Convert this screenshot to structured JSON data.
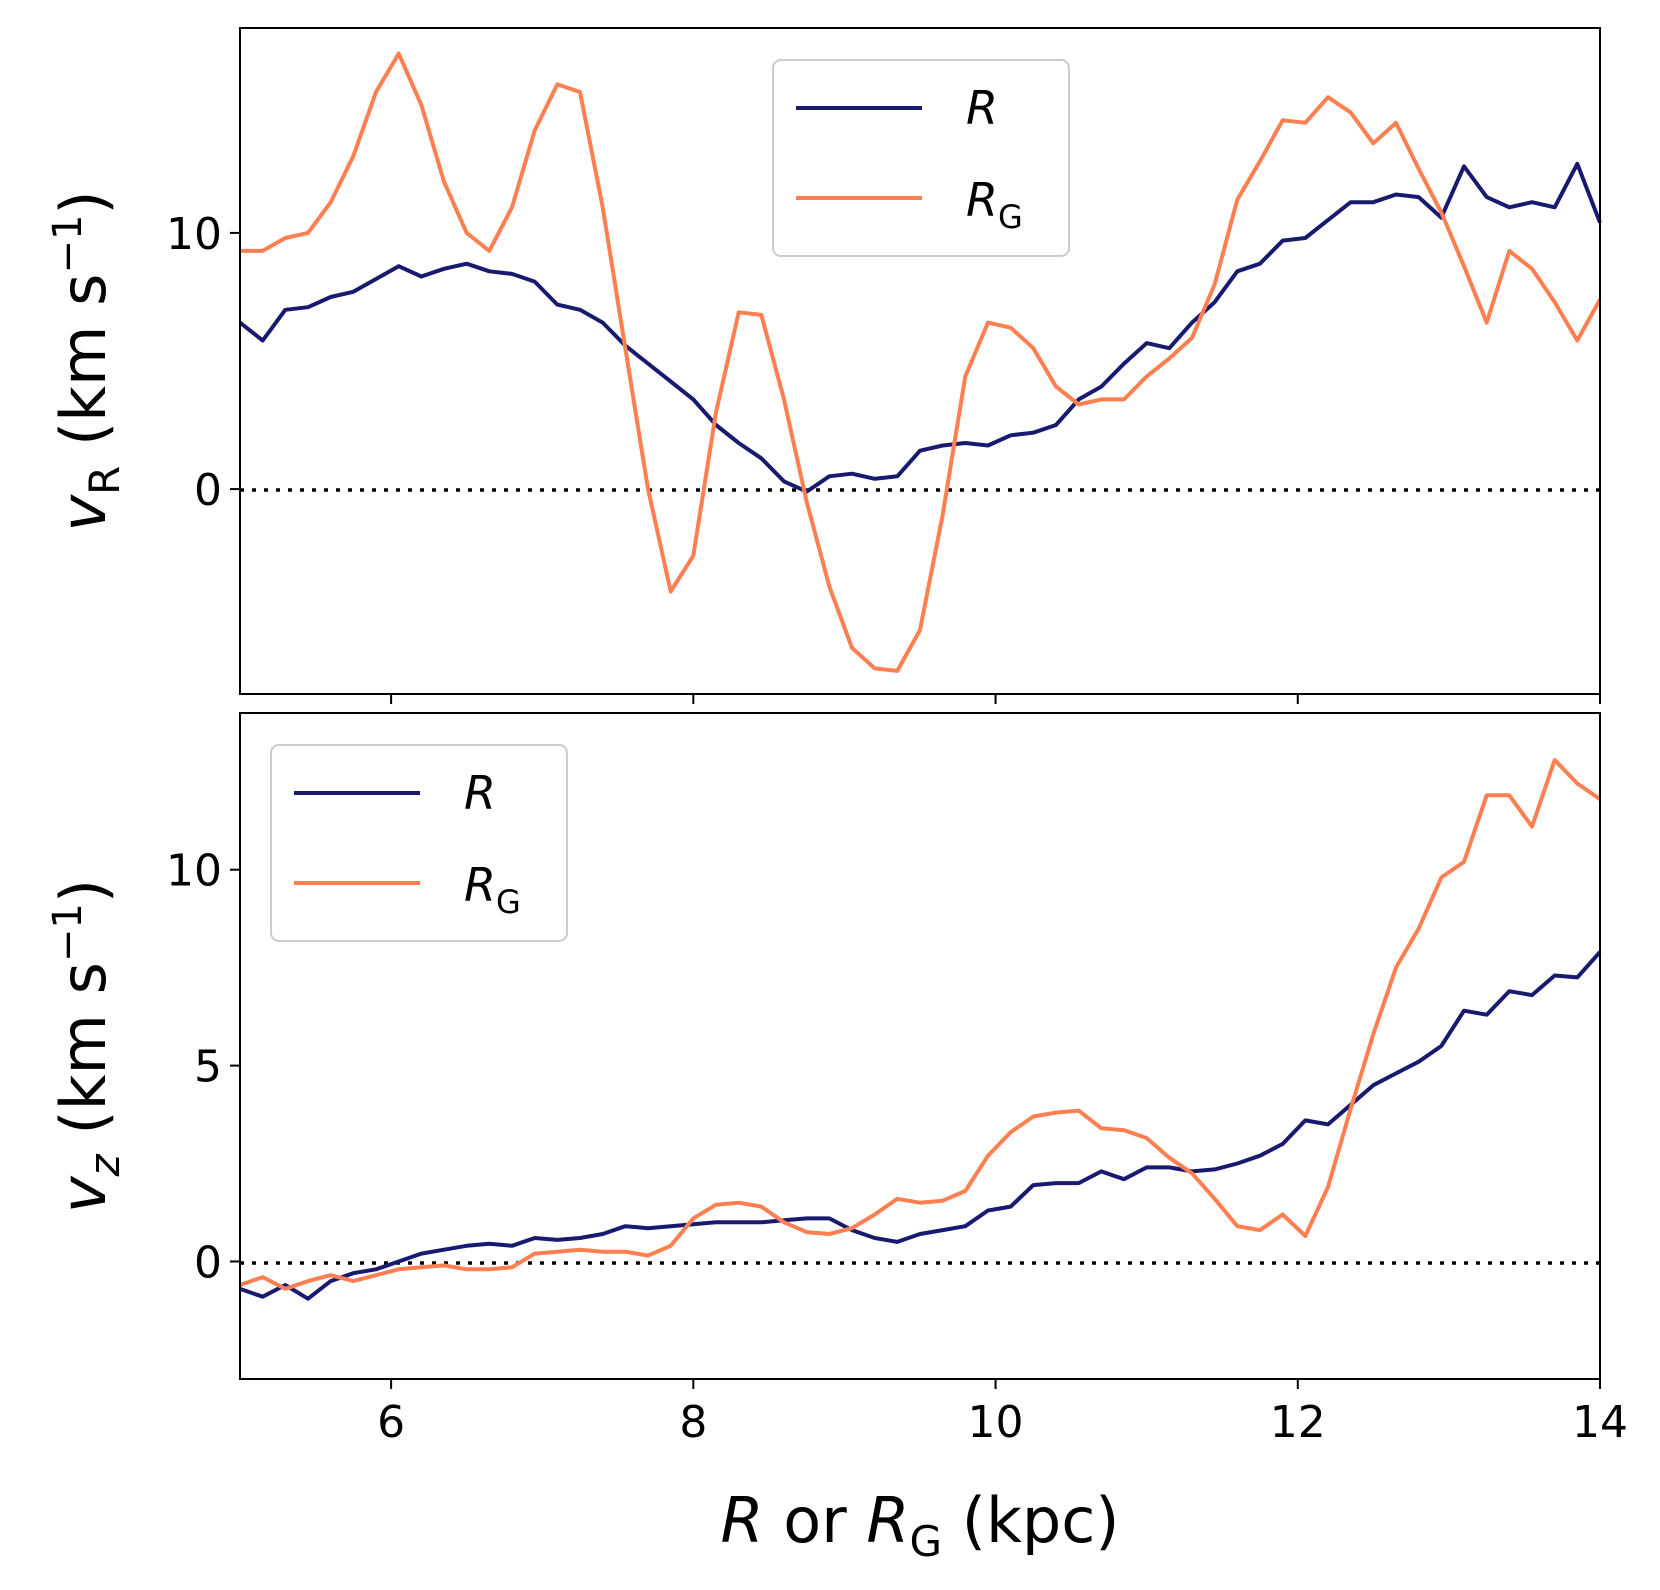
{
  "chart_data": [
    {
      "type": "line",
      "panel": "top",
      "ylabel_main": "v",
      "ylabel_sub": "R",
      "ylabel_units": "(km s",
      "ylabel_exp": "−1",
      "ylabel_close": ")",
      "xlim": [
        5,
        14
      ],
      "ylim": [
        -8,
        18
      ],
      "yticks": [
        0,
        10
      ],
      "ytick_labels": [
        "0",
        "10"
      ],
      "xticks": [
        6,
        8,
        10,
        12,
        14
      ],
      "zero_line": true,
      "legend_position": "top-center",
      "series": [
        {
          "name": "R",
          "label_main": "R",
          "label_sub": "",
          "color": "#191970",
          "x": [
            5.0,
            5.15,
            5.3,
            5.45,
            5.6,
            5.75,
            5.9,
            6.05,
            6.2,
            6.35,
            6.5,
            6.65,
            6.8,
            6.95,
            7.1,
            7.25,
            7.4,
            7.55,
            7.7,
            7.85,
            8.0,
            8.15,
            8.3,
            8.45,
            8.6,
            8.75,
            8.9,
            9.05,
            9.2,
            9.35,
            9.5,
            9.65,
            9.8,
            9.95,
            10.1,
            10.25,
            10.4,
            10.55,
            10.7,
            10.85,
            11.0,
            11.15,
            11.3,
            11.45,
            11.6,
            11.75,
            11.9,
            12.05,
            12.2,
            12.35,
            12.5,
            12.65,
            12.8,
            12.95,
            13.1,
            13.25,
            13.4,
            13.55,
            13.7,
            13.85,
            14.0
          ],
          "y": [
            6.5,
            5.8,
            7.0,
            7.1,
            7.5,
            7.7,
            8.2,
            8.7,
            8.3,
            8.6,
            8.8,
            8.5,
            8.4,
            8.1,
            7.2,
            7.0,
            6.5,
            5.6,
            4.9,
            4.2,
            3.5,
            2.5,
            1.8,
            1.2,
            0.3,
            -0.1,
            0.5,
            0.6,
            0.4,
            0.5,
            1.5,
            1.7,
            1.8,
            1.7,
            2.1,
            2.2,
            2.5,
            3.5,
            4.0,
            4.9,
            5.7,
            5.5,
            6.5,
            7.3,
            8.5,
            8.8,
            9.7,
            9.8,
            10.5,
            11.2,
            11.2,
            11.5,
            11.4,
            10.6,
            12.6,
            11.4,
            11.0,
            11.2,
            11.0,
            12.7,
            10.4
          ]
        },
        {
          "name": "R_G",
          "label_main": "R",
          "label_sub": "G",
          "color": "#ff7f50",
          "x": [
            5.0,
            5.15,
            5.3,
            5.45,
            5.6,
            5.75,
            5.9,
            6.05,
            6.2,
            6.35,
            6.5,
            6.65,
            6.8,
            6.95,
            7.1,
            7.25,
            7.4,
            7.55,
            7.7,
            7.85,
            8.0,
            8.15,
            8.3,
            8.45,
            8.6,
            8.75,
            8.9,
            9.05,
            9.2,
            9.35,
            9.5,
            9.65,
            9.8,
            9.95,
            10.1,
            10.25,
            10.4,
            10.55,
            10.7,
            10.85,
            11.0,
            11.15,
            11.3,
            11.45,
            11.6,
            11.75,
            11.9,
            12.05,
            12.2,
            12.35,
            12.5,
            12.65,
            12.8,
            12.95,
            13.1,
            13.25,
            13.4,
            13.55,
            13.7,
            13.85,
            14.0
          ],
          "y": [
            9.3,
            9.3,
            9.8,
            10.0,
            11.2,
            13.0,
            15.5,
            17.0,
            15.0,
            12.0,
            10.0,
            9.3,
            11.0,
            14.0,
            15.8,
            15.5,
            11.0,
            5.5,
            0.0,
            -4.0,
            -2.6,
            3.0,
            6.9,
            6.8,
            3.5,
            -0.5,
            -3.8,
            -6.2,
            -7.0,
            -7.1,
            -5.5,
            -1.0,
            4.4,
            6.5,
            6.3,
            5.5,
            4.0,
            3.3,
            3.5,
            3.5,
            4.4,
            5.1,
            5.9,
            8.0,
            11.3,
            12.8,
            14.4,
            14.3,
            15.3,
            14.7,
            13.5,
            14.3,
            12.5,
            10.8,
            8.7,
            6.5,
            9.3,
            8.6,
            7.3,
            5.8,
            7.4
          ]
        }
      ]
    },
    {
      "type": "line",
      "panel": "bottom",
      "ylabel_main": "v",
      "ylabel_sub": "z",
      "ylabel_units": "(km s",
      "ylabel_exp": "−1",
      "ylabel_close": ")",
      "xlabel_main1": "R",
      "xlabel_mid": " or ",
      "xlabel_main2": "R",
      "xlabel_sub": "G",
      "xlabel_units": " (kpc)",
      "xlim": [
        5,
        14
      ],
      "ylim": [
        -3,
        14
      ],
      "yticks": [
        0,
        5,
        10
      ],
      "ytick_labels": [
        "0",
        "5",
        "10"
      ],
      "xticks": [
        6,
        8,
        10,
        12,
        14
      ],
      "xtick_labels": [
        "6",
        "8",
        "10",
        "12",
        "14"
      ],
      "zero_line": true,
      "legend_position": "upper-left",
      "series": [
        {
          "name": "R",
          "label_main": "R",
          "label_sub": "",
          "color": "#191970",
          "x": [
            5.0,
            5.15,
            5.3,
            5.45,
            5.6,
            5.75,
            5.9,
            6.05,
            6.2,
            6.35,
            6.5,
            6.65,
            6.8,
            6.95,
            7.1,
            7.25,
            7.4,
            7.55,
            7.7,
            7.85,
            8.0,
            8.15,
            8.3,
            8.45,
            8.6,
            8.75,
            8.9,
            9.05,
            9.2,
            9.35,
            9.5,
            9.65,
            9.8,
            9.95,
            10.1,
            10.25,
            10.4,
            10.55,
            10.7,
            10.85,
            11.0,
            11.15,
            11.3,
            11.45,
            11.6,
            11.75,
            11.9,
            12.05,
            12.2,
            12.35,
            12.5,
            12.65,
            12.8,
            12.95,
            13.1,
            13.25,
            13.4,
            13.55,
            13.7,
            13.85,
            14.0
          ],
          "y": [
            -0.7,
            -0.9,
            -0.6,
            -0.95,
            -0.5,
            -0.3,
            -0.2,
            0.0,
            0.2,
            0.3,
            0.4,
            0.45,
            0.4,
            0.6,
            0.55,
            0.6,
            0.7,
            0.9,
            0.85,
            0.9,
            0.95,
            1.0,
            1.0,
            1.0,
            1.05,
            1.1,
            1.1,
            0.8,
            0.6,
            0.5,
            0.7,
            0.8,
            0.9,
            1.3,
            1.4,
            1.95,
            2.0,
            2.0,
            2.3,
            2.1,
            2.4,
            2.4,
            2.3,
            2.35,
            2.5,
            2.7,
            3.0,
            3.6,
            3.5,
            4.0,
            4.5,
            4.8,
            5.1,
            5.5,
            6.4,
            6.3,
            6.9,
            6.8,
            7.3,
            7.25,
            7.9
          ]
        },
        {
          "name": "R_G",
          "label_main": "R",
          "label_sub": "G",
          "color": "#ff7f50",
          "x": [
            5.0,
            5.15,
            5.3,
            5.45,
            5.6,
            5.75,
            5.9,
            6.05,
            6.2,
            6.35,
            6.5,
            6.65,
            6.8,
            6.95,
            7.1,
            7.25,
            7.4,
            7.55,
            7.7,
            7.85,
            8.0,
            8.15,
            8.3,
            8.45,
            8.6,
            8.75,
            8.9,
            9.05,
            9.2,
            9.35,
            9.5,
            9.65,
            9.8,
            9.95,
            10.1,
            10.25,
            10.4,
            10.55,
            10.7,
            10.85,
            11.0,
            11.15,
            11.3,
            11.45,
            11.6,
            11.75,
            11.9,
            12.05,
            12.2,
            12.35,
            12.5,
            12.65,
            12.8,
            12.95,
            13.1,
            13.25,
            13.4,
            13.55,
            13.7,
            13.85,
            14.0
          ],
          "y": [
            -0.6,
            -0.4,
            -0.7,
            -0.5,
            -0.35,
            -0.5,
            -0.35,
            -0.2,
            -0.15,
            -0.1,
            -0.2,
            -0.2,
            -0.15,
            0.2,
            0.25,
            0.3,
            0.25,
            0.25,
            0.15,
            0.4,
            1.1,
            1.45,
            1.5,
            1.4,
            1.0,
            0.75,
            0.7,
            0.85,
            1.2,
            1.6,
            1.5,
            1.55,
            1.8,
            2.7,
            3.3,
            3.7,
            3.8,
            3.85,
            3.4,
            3.35,
            3.15,
            2.65,
            2.25,
            1.6,
            0.9,
            0.8,
            1.2,
            0.65,
            1.9,
            3.9,
            5.8,
            7.5,
            8.5,
            9.8,
            10.2,
            11.9,
            11.9,
            11.1,
            12.8,
            12.2,
            11.8
          ]
        }
      ]
    }
  ]
}
